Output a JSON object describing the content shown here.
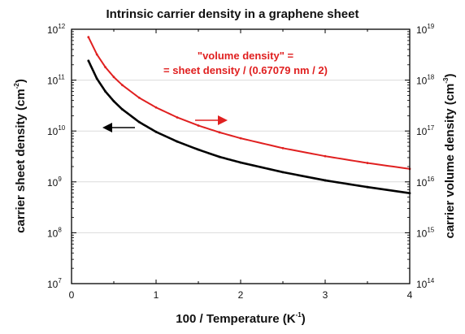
{
  "chart_data": {
    "type": "line",
    "title": "Intrinsic carrier density in a graphene sheet",
    "xlabel": {
      "text": "100 / Temperature (K",
      "sup": "-1",
      "suffix": ")"
    },
    "ylabel_left": {
      "text": "carrier sheet density (cm",
      "sup": "-2",
      "suffix": ")"
    },
    "ylabel_right": {
      "text": "carrier volume density (cm",
      "sup": "-3",
      "suffix": ")"
    },
    "xlim": [
      0,
      4
    ],
    "xticks": [
      "0",
      "1",
      "2",
      "3",
      "4"
    ],
    "yscale_left": "log",
    "ylim_left": [
      10000000.0,
      1000000000000.0
    ],
    "yticks_left": [
      {
        "base": "10",
        "exp": "7"
      },
      {
        "base": "10",
        "exp": "8"
      },
      {
        "base": "10",
        "exp": "9"
      },
      {
        "base": "10",
        "exp": "10"
      },
      {
        "base": "10",
        "exp": "11"
      },
      {
        "base": "10",
        "exp": "12"
      }
    ],
    "yscale_right": "log",
    "ylim_right": [
      100000000000000.0,
      1e+19
    ],
    "yticks_right": [
      {
        "base": "10",
        "exp": "14"
      },
      {
        "base": "10",
        "exp": "15"
      },
      {
        "base": "10",
        "exp": "16"
      },
      {
        "base": "10",
        "exp": "17"
      },
      {
        "base": "10",
        "exp": "18"
      },
      {
        "base": "10",
        "exp": "19"
      }
    ],
    "grid": true,
    "series": [
      {
        "axis": "left",
        "color": "#000000",
        "x": [
          0.2,
          0.3,
          0.4,
          0.5,
          0.6,
          0.8,
          1.0,
          1.25,
          1.5,
          1.75,
          2.0,
          2.5,
          3.0,
          3.5,
          4.0
        ],
        "y": [
          240000000000.0,
          107000000000.0,
          60000000000.0,
          38500000000.0,
          26700000000.0,
          15000000000.0,
          9600000000.0,
          6200000000.0,
          4300000000.0,
          3100000000.0,
          2400000000.0,
          1550000000.0,
          1070000000.0,
          790000000.0,
          600000000.0
        ]
      },
      {
        "axis": "right",
        "color": "#e02020",
        "x": [
          0.2,
          0.3,
          0.4,
          0.5,
          0.6,
          0.8,
          1.0,
          1.25,
          1.5,
          1.75,
          2.0,
          2.5,
          3.0,
          3.5,
          4.0
        ],
        "y": [
          7e+18,
          3.2e+18,
          1.8e+18,
          1.15e+18,
          8e+17,
          4.5e+17,
          2.9e+17,
          1.85e+17,
          1.28e+17,
          9.4e+16,
          7.2e+16,
          4.6e+16,
          3.2e+16,
          2.35e+16,
          1.8e+16
        ]
      }
    ],
    "annotations": [
      {
        "text": "\"volume density\" =",
        "color": "#e02020"
      },
      {
        "text": "= sheet density / (0.67079 nm / 2)",
        "color": "#e02020"
      }
    ],
    "arrows": [
      {
        "direction": "left",
        "color": "#000000",
        "points_to": "left axis"
      },
      {
        "direction": "right",
        "color": "#e02020",
        "points_to": "right axis"
      }
    ]
  }
}
